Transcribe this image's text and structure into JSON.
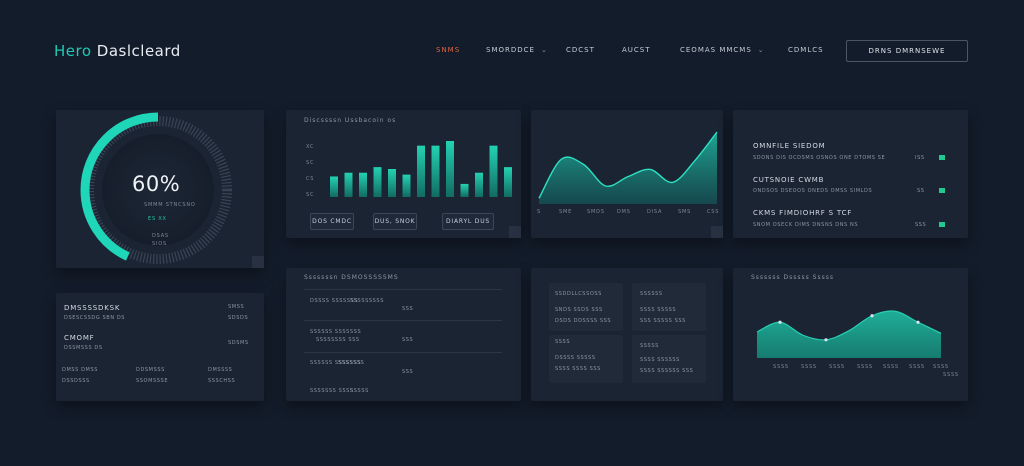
{
  "nav": {
    "brand_part1": "Hero",
    "brand_part2": " Daslcleard",
    "items": [
      {
        "label": "SNMS",
        "active": true,
        "dropdown": false
      },
      {
        "label": "SMORDDCE",
        "active": false,
        "dropdown": true
      },
      {
        "label": "CDCST",
        "active": false,
        "dropdown": false
      },
      {
        "label": "AUCST",
        "active": false,
        "dropdown": false
      },
      {
        "label": "CEOMAS MMCMS",
        "active": false,
        "dropdown": true
      },
      {
        "label": "CDMLCS",
        "active": false,
        "dropdown": false
      }
    ],
    "cta_label": "DRNS DMRNSEWE"
  },
  "gauge_card": {
    "percent_text": "60%",
    "progress": 0.6,
    "sub_label": "SMMM STNCSNO",
    "value_label": "ES XX",
    "foot_label_1": "DSAS",
    "foot_label_2": "SIOS"
  },
  "bar_card": {
    "title": "Discssssn Ussbacoin  os",
    "y_ticks": [
      "XC",
      "SC",
      "CS",
      "SC"
    ],
    "chart_data": {
      "type": "bar",
      "values": [
        22,
        26,
        26,
        32,
        30,
        24,
        55,
        55,
        60,
        14,
        26,
        55,
        32
      ]
    },
    "buttons": [
      "DOS CMDC",
      "DUS, SNOK",
      "DIARYL DUS"
    ]
  },
  "area_card_top": {
    "x_labels": [
      "SME",
      "SMDS",
      "DMS",
      "DISA",
      "SMS",
      "CSS"
    ],
    "left_label": "S",
    "chart_data": {
      "type": "area",
      "values": [
        8,
        62,
        55,
        25,
        38,
        48,
        30,
        60,
        100
      ]
    }
  },
  "list_card_top": {
    "items": [
      {
        "title": "OMNFILE SIEDOM",
        "sub": "SDONS DIS OCDSMS OSNOS ONE DTOMS SE"
      },
      {
        "title": "CUTSNOIE CWMB",
        "sub": "ONDSOS DSEOOS ONEDS OMSS SIMLDS"
      },
      {
        "title": "CKMS FIMDIOHRF S TCF",
        "sub": "SNOM OSECK DIMS DNSNS DNS NS"
      }
    ],
    "chip_labels": [
      "ISS",
      "SS",
      "SSS"
    ]
  },
  "stats_card": {
    "row1_left": "DMSSSSDKSK",
    "row1_left_sub": "DSESCSSDG SBN DS",
    "row1_right": "SMSS",
    "row1_right_sub": "SDSDS",
    "row2_left": "CMOMF",
    "row2_left_sub": "DSSMSSS DS",
    "row2_right_sub": "SDSMS",
    "cols": [
      {
        "title": "DMSS DMSS",
        "sub": "DSSDSSS"
      },
      {
        "title": "DDSMSSS",
        "sub": "SSOMSSSE"
      },
      {
        "title": "DMSSSS",
        "sub": "SSSCHSS"
      }
    ]
  },
  "table_card": {
    "title": "Sssssssn DSMOSSSSSMS",
    "rows": [
      {
        "a": "DSSSS SSSSSSS",
        "b": "SSSSSSSSS",
        "c": "SSS"
      },
      {
        "a": "SSSSSS SSSSSSS",
        "b": "SSSSSSSS SSS",
        "c": "SSS"
      },
      {
        "a": "SSSSSS SSSSSSS",
        "b": "SSSSSSS",
        "c": "SSS"
      },
      {
        "a": "SSSSSSS SSSS",
        "b": "SSSSS",
        "c": "SSS"
      }
    ]
  },
  "mini_card": {
    "blocks": [
      {
        "title": "SSDDLLCSSOSS",
        "sub": "SNDS SSDS SSS",
        "sub2": "DSDS DDSSSS SSS"
      },
      {
        "title": "SSSSSS",
        "sub": "SSSS SSSSS",
        "sub2": "SSS SSSSS SSS"
      },
      {
        "title": "SSSS",
        "sub": "DSSSS SSSSS",
        "sub2": "SSSS SSSS SSS"
      },
      {
        "title": "SSSSS",
        "sub": "SSSS SSSSSS",
        "sub2": "SSSS SSSSSS SSS"
      }
    ]
  },
  "area_card_bottom": {
    "title": "Sssssss Dsssss Sssss",
    "x_labels": [
      "SSSS",
      "SSSS",
      "SSSS",
      "SSSS",
      "SSSS",
      "SSSS",
      "SSSS",
      "SSSS"
    ],
    "chart_data": {
      "type": "area",
      "values": [
        40,
        55,
        35,
        28,
        42,
        65,
        72,
        55,
        38
      ]
    }
  },
  "colors": {
    "background": "#131c2a",
    "card": "#1b2433",
    "teal": "#1fc9b4",
    "accent_orange": "#e0643f",
    "chip_green": "#22c98f"
  }
}
